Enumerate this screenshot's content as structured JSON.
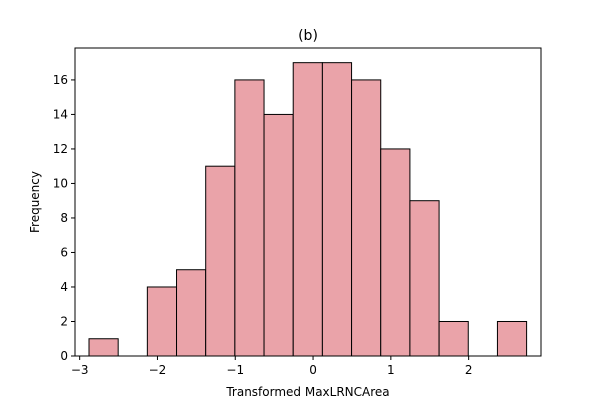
{
  "chart_data": {
    "type": "bar",
    "subtype": "histogram",
    "title": "(b)",
    "xlabel": "Transformed MaxLRNCArea",
    "ylabel": "Frequency",
    "bin_edges": [
      -2.88,
      -2.505,
      -2.13,
      -1.755,
      -1.38,
      -1.005,
      -0.63,
      -0.255,
      0.12,
      0.495,
      0.87,
      1.245,
      1.62,
      1.995,
      2.37,
      2.745
    ],
    "counts": [
      1,
      0,
      4,
      5,
      11,
      16,
      14,
      17,
      17,
      16,
      12,
      9,
      2,
      0,
      2
    ],
    "xlim": [
      -3.06,
      2.93
    ],
    "ylim": [
      0,
      17.85
    ],
    "xticks": [
      -3,
      -2,
      -1,
      0,
      1,
      2
    ],
    "xtick_labels": [
      "−3",
      "−2",
      "−1",
      "0",
      "1",
      "2"
    ],
    "yticks": [
      0,
      2,
      4,
      6,
      8,
      10,
      12,
      14,
      16
    ],
    "ytick_labels": [
      "0",
      "2",
      "4",
      "6",
      "8",
      "10",
      "12",
      "14",
      "16"
    ],
    "bar_color": "#eaa3a9",
    "edge_color": "#000000",
    "grid": false,
    "legend": "none"
  }
}
